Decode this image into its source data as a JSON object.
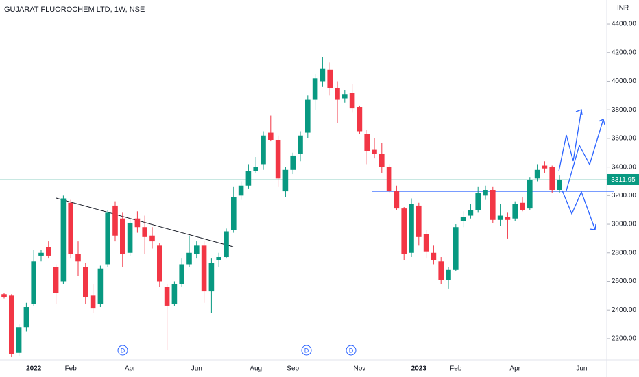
{
  "chart_data": {
    "type": "candlestick",
    "title": "GUJARAT FLUOROCHEM LTD, 1W, NSE",
    "currency": "INR",
    "up_color": "#089981",
    "down_color": "#f23645",
    "categories": [
      null,
      null,
      null,
      null,
      "2022",
      null,
      null,
      null,
      null,
      "Feb",
      null,
      null,
      null,
      null,
      null,
      null,
      null,
      "Apr",
      null,
      null,
      null,
      null,
      null,
      null,
      null,
      null,
      "Jun",
      null,
      null,
      null,
      null,
      null,
      null,
      null,
      "Aug",
      null,
      null,
      null,
      null,
      "Sep",
      null,
      null,
      null,
      null,
      null,
      null,
      null,
      null,
      "Nov",
      null,
      null,
      null,
      null,
      null,
      null,
      null,
      "2023",
      null,
      null,
      null,
      null,
      "Feb",
      null,
      null,
      null,
      null,
      null,
      null,
      null,
      "Apr",
      null,
      null,
      null,
      null,
      null,
      null
    ],
    "future_label": "Jun",
    "open": [
      2510,
      2500,
      2100,
      2280,
      2440,
      2780,
      2840,
      2700,
      2600,
      3150,
      2790,
      2700,
      2500,
      2440,
      2720,
      3130,
      3040,
      2800,
      3040,
      2980,
      2920,
      2850,
      2560,
      2440,
      2580,
      2720,
      2790,
      2850,
      2530,
      2750,
      2770,
      2960,
      3200,
      3270,
      3370,
      3420,
      3640,
      3590,
      3230,
      3380,
      3490,
      3640,
      3870,
      4000,
      4080,
      3950,
      3880,
      3920,
      3820,
      3630,
      3520,
      3490,
      3400,
      3230,
      3110,
      2800,
      3130,
      2930,
      2800,
      2740,
      2610,
      2680,
      3020,
      3060,
      3100,
      3200,
      3240,
      3030,
      3050,
      3040,
      3150,
      3110,
      3320,
      3410,
      3400,
      3240
    ],
    "high": [
      2520,
      2510,
      2300,
      2450,
      2820,
      2820,
      2880,
      2720,
      3200,
      3170,
      2880,
      2730,
      2580,
      2710,
      3100,
      3160,
      3080,
      3040,
      3090,
      3060,
      2980,
      2870,
      2580,
      2600,
      2760,
      2920,
      2880,
      2880,
      2760,
      2800,
      2970,
      3260,
      3300,
      3420,
      3470,
      3650,
      3760,
      3620,
      3400,
      3500,
      3650,
      3900,
      4050,
      4170,
      4130,
      4000,
      3940,
      3980,
      3830,
      3660,
      3600,
      3570,
      3420,
      3270,
      3120,
      3180,
      3150,
      2960,
      2850,
      2770,
      2700,
      3000,
      3090,
      3140,
      3260,
      3270,
      3260,
      3140,
      3080,
      3160,
      3190,
      3330,
      3420,
      3440,
      3410,
      3340
    ],
    "low": [
      2480,
      2070,
      2080,
      2250,
      2430,
      2740,
      2760,
      2440,
      2580,
      2760,
      2640,
      2440,
      2380,
      2420,
      2700,
      2880,
      2700,
      2780,
      2940,
      2790,
      2830,
      2560,
      2120,
      2430,
      2560,
      2700,
      2760,
      2450,
      2380,
      2700,
      2760,
      2940,
      3170,
      3250,
      3360,
      3380,
      3580,
      3260,
      3190,
      3350,
      3440,
      3600,
      3800,
      3960,
      3900,
      3710,
      3850,
      3780,
      3630,
      3420,
      3460,
      3360,
      3220,
      3100,
      2750,
      2770,
      2850,
      2760,
      2720,
      2580,
      2550,
      2670,
      2980,
      3040,
      3080,
      3170,
      3010,
      2990,
      2900,
      3020,
      3090,
      3100,
      3300,
      3360,
      3220,
      3220
    ],
    "close": [
      2490,
      2090,
      2280,
      2420,
      2740,
      2800,
      2780,
      2520,
      3180,
      2790,
      2740,
      2490,
      2410,
      2690,
      3080,
      2920,
      2790,
      3010,
      2980,
      2910,
      2880,
      2600,
      2430,
      2580,
      2720,
      2800,
      2850,
      2530,
      2730,
      2770,
      2950,
      3190,
      3270,
      3370,
      3400,
      3620,
      3590,
      3320,
      3380,
      3480,
      3620,
      3870,
      4020,
      4090,
      3950,
      3870,
      3910,
      3810,
      3650,
      3510,
      3490,
      3400,
      3230,
      3110,
      2790,
      3140,
      2910,
      2810,
      2750,
      2610,
      2680,
      2980,
      3050,
      3100,
      3220,
      3240,
      3030,
      3060,
      3030,
      3140,
      3100,
      3310,
      3380,
      3390,
      3240,
      3311.95
    ],
    "last_price_label": "3311.95",
    "dividends": [
      "D",
      "D",
      "D"
    ],
    "ylim": [
      2051,
      4568
    ],
    "yticks": [
      {
        "value": 2200,
        "label": "2200.00"
      },
      {
        "value": 2400,
        "label": "2400.00"
      },
      {
        "value": 2600,
        "label": "2600.00"
      },
      {
        "value": 2800,
        "label": "2800.00"
      },
      {
        "value": 3000,
        "label": "3000.00"
      },
      {
        "value": 3200,
        "label": "3200.00"
      },
      {
        "value": 3400,
        "label": "3400.00"
      },
      {
        "value": 3600,
        "label": "3600.00"
      },
      {
        "value": 3800,
        "label": "3800.00"
      },
      {
        "value": 4000,
        "label": "4000.00"
      },
      {
        "value": 4200,
        "label": "4200.00"
      },
      {
        "value": 4400,
        "label": "4400.00"
      }
    ],
    "grid": false
  }
}
